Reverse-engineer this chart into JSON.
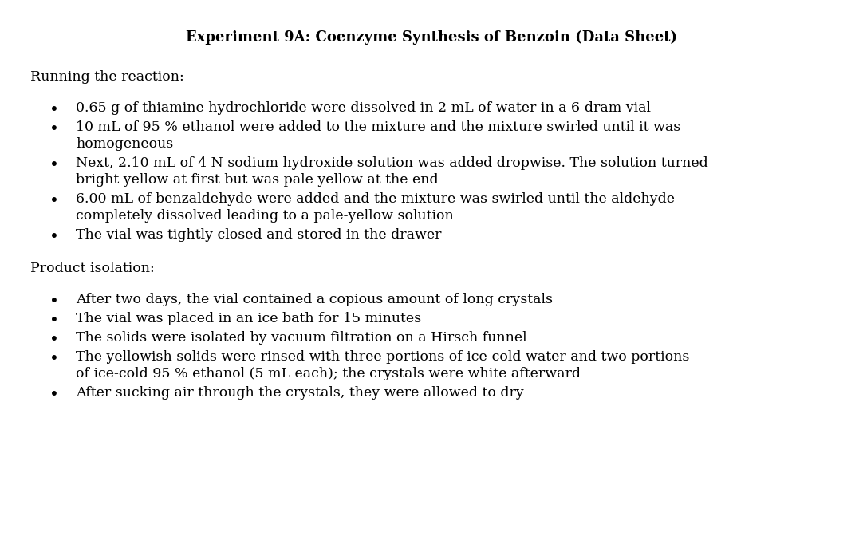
{
  "title": "Experiment 9A: Coenzyme Synthesis of Benzoin (Data Sheet)",
  "background_color": "#ffffff",
  "text_color": "#000000",
  "section1_heading": "Running the reaction:",
  "section1_bullets": [
    "0.65 g of thiamine hydrochloride were dissolved in 2 mL of water in a 6-dram vial",
    "10 mL of 95 % ethanol were added to the mixture and the mixture swirled until it was homogeneous",
    "Next, 2.10 mL of 4 N sodium hydroxide solution was added dropwise. The solution turned bright yellow at first but was pale yellow at the end",
    "6.00 mL of benzaldehyde were added and the mixture was swirled until the aldehyde completely dissolved leading to a pale-yellow solution",
    "The vial was tightly closed and stored in the drawer"
  ],
  "section2_heading": "Product isolation:",
  "section2_bullets": [
    "After two days, the vial contained a copious amount of long crystals",
    "The vial was placed in an ice bath for 15 minutes",
    "The solids were isolated by vacuum filtration on a Hirsch funnel",
    "The yellowish solids were rinsed with three portions of ice-cold water and two portions of ice-cold 95 % ethanol (5 mL each); the crystals were white afterward",
    "After sucking air through the crystals, they were allowed to dry"
  ],
  "title_fontsize": 13.0,
  "heading_fontsize": 12.5,
  "body_fontsize": 12.5,
  "font_family": "serif"
}
